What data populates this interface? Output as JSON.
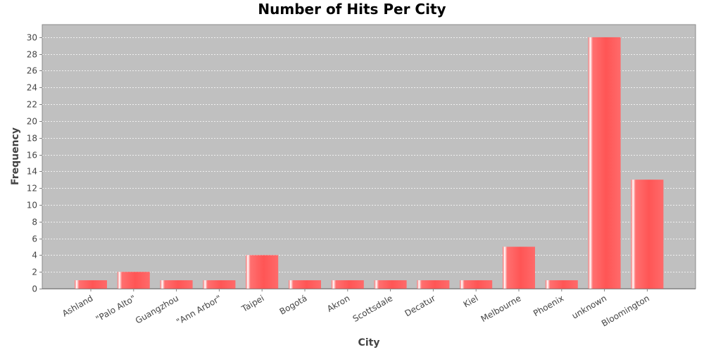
{
  "chart_data": {
    "type": "bar",
    "title": "Number of Hits Per City",
    "xlabel": "City",
    "ylabel": "Frequency",
    "categories": [
      "Ashland",
      "\"Palo Alto\"",
      "Guangzhou",
      "\"Ann Arbor\"",
      "Taipei",
      "Bogotá",
      "Akron",
      "Scottsdale",
      "Decatur",
      "Kiel",
      "Melbourne",
      "Phoenix",
      "unknown",
      "Bloomington"
    ],
    "values": [
      1,
      2,
      1,
      1,
      4,
      1,
      1,
      1,
      1,
      1,
      5,
      1,
      30,
      13
    ],
    "yticks": [
      0,
      2,
      4,
      6,
      8,
      10,
      12,
      14,
      16,
      18,
      20,
      22,
      24,
      26,
      28,
      30
    ],
    "ylim": [
      0,
      31.5
    ],
    "grid": true,
    "legend": "none",
    "colors": {
      "bar": "#ff5555",
      "bar_light": "#ff8a8a",
      "plot_background": "#c0c0c0",
      "gridline": "#ffffff"
    }
  }
}
